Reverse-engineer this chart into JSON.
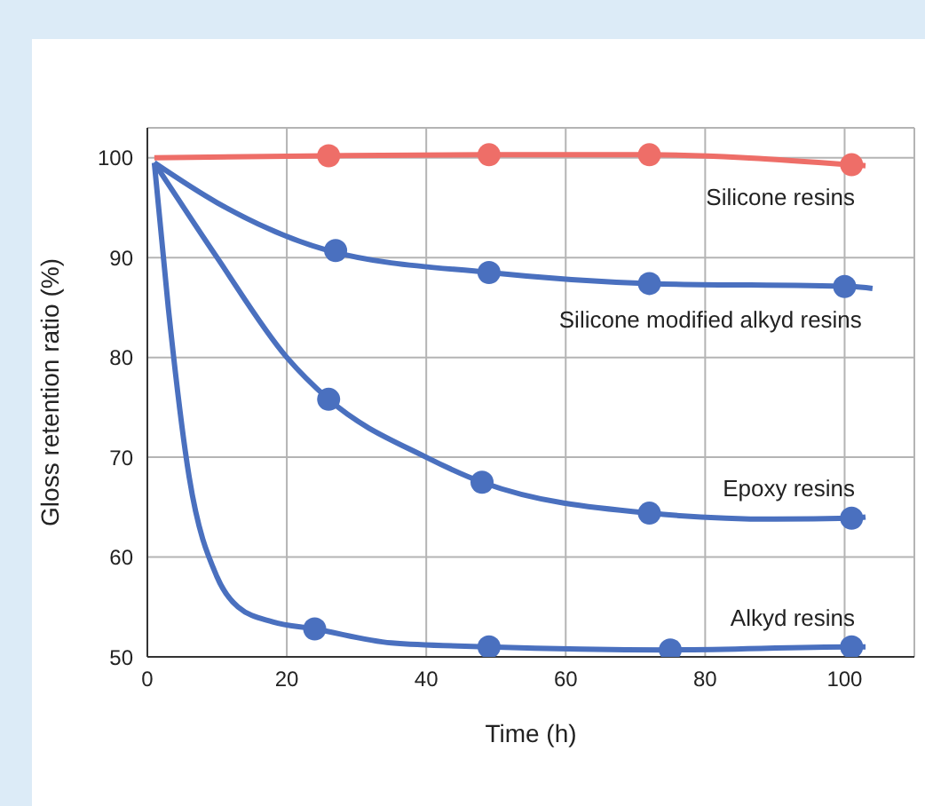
{
  "chart_data": {
    "type": "line",
    "xlabel": "Time (h)",
    "ylabel": "Gloss retention ratio (%)",
    "xlim": [
      0,
      110
    ],
    "xticks": [
      0,
      20,
      40,
      60,
      80,
      100
    ],
    "ylim": [
      50,
      103
    ],
    "yticks": [
      50,
      60,
      70,
      80,
      90,
      100
    ],
    "grid": true,
    "legend": false,
    "series": [
      {
        "type": "line",
        "name": "Silicone resins",
        "color": "#ee6e68",
        "marker": "none",
        "x": [
          1,
          26,
          49,
          72,
          101,
          103
        ],
        "values": [
          100,
          100.2,
          100.3,
          100.3,
          99.3,
          99.2
        ]
      },
      {
        "type": "scatter",
        "color": "#ee6e68",
        "marker": "circle",
        "x": [
          26,
          49,
          72,
          101
        ],
        "values": [
          100.2,
          100.3,
          100.3,
          99.3
        ]
      },
      {
        "type": "line",
        "name": "Silicone modified alkyd resins",
        "color": "#4a70bf",
        "marker": "none",
        "x": [
          1,
          10,
          26,
          49,
          72,
          101,
          104
        ],
        "values": [
          99.5,
          95.5,
          90.7,
          88.5,
          87.4,
          87.1,
          86.9
        ]
      },
      {
        "type": "scatter",
        "color": "#4a70bf",
        "marker": "circle",
        "x": [
          27,
          49,
          72,
          100
        ],
        "values": [
          90.7,
          88.5,
          87.4,
          87.1
        ]
      },
      {
        "type": "line",
        "name": "Epoxy resins",
        "color": "#4a70bf",
        "marker": "none",
        "x": [
          1,
          10,
          20,
          26,
          40,
          48,
          72,
          90,
          101,
          103
        ],
        "values": [
          99.5,
          90,
          80,
          75.8,
          70,
          67.5,
          64.4,
          63.8,
          63.9,
          64
        ]
      },
      {
        "type": "scatter",
        "color": "#4a70bf",
        "marker": "circle",
        "x": [
          26,
          48,
          72,
          101
        ],
        "values": [
          75.8,
          67.5,
          64.4,
          63.9
        ]
      },
      {
        "type": "line",
        "name": "Alkyd resins",
        "color": "#4a70bf",
        "marker": "none",
        "x": [
          1,
          3,
          6,
          10,
          13,
          18,
          24,
          35,
          49,
          75,
          101,
          103
        ],
        "values": [
          99.5,
          85,
          68,
          58,
          55,
          53.5,
          52.8,
          51.4,
          51,
          50.7,
          51,
          51
        ]
      },
      {
        "type": "scatter",
        "color": "#4a70bf",
        "marker": "circle",
        "x": [
          24,
          49,
          75,
          101
        ],
        "values": [
          52.8,
          51,
          50.7,
          51
        ]
      }
    ]
  }
}
